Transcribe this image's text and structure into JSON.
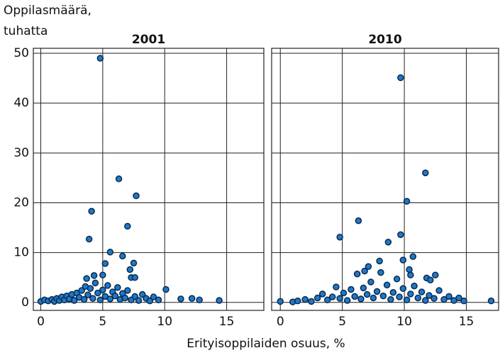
{
  "axis_labels": {
    "y": [
      "Oppilasmäärä,",
      "tuhatta"
    ],
    "x": "Erityisoppilaiden osuus, %"
  },
  "chart_data": [
    {
      "type": "scatter",
      "title": "2001",
      "x": [
        0,
        0.3,
        0.6,
        0.9,
        1.1,
        1.3,
        1.5,
        1.7,
        1.9,
        2.1,
        2.3,
        2.5,
        2.7,
        2.9,
        3.1,
        3.3,
        3.5,
        3.6,
        3.8,
        4.0,
        4.2,
        4.4,
        4.6,
        4.8,
        5.0,
        5.2,
        5.4,
        5.6,
        5.8,
        6.0,
        6.2,
        6.4,
        6.6,
        6.8,
        7.0,
        7.3,
        7.6,
        7.9,
        8.2,
        8.5,
        8.8,
        9.1,
        9.5,
        10.1,
        11.3,
        12.2,
        12.8,
        14.4,
        4.8,
        6.3,
        7.7,
        4.1,
        7.0,
        3.9,
        5.6,
        6.6,
        7.5,
        5.2,
        7.2,
        7.3,
        7.6,
        4.3,
        3.7,
        5.0
      ],
      "values": [
        0.2,
        0.5,
        0.3,
        0.6,
        0.2,
        0.8,
        0.4,
        1.1,
        0.5,
        1.3,
        0.7,
        1.6,
        0.4,
        1.9,
        1.0,
        2.4,
        0.6,
        3.2,
        1.5,
        2.8,
        0.8,
        3.9,
        1.9,
        0.5,
        2.5,
        1.2,
        3.4,
        0.7,
        2.1,
        1.3,
        3.0,
        0.6,
        1.8,
        0.9,
        2.4,
        0.5,
        1.2,
        0.4,
        1.6,
        0.8,
        0.3,
        1.1,
        0.5,
        2.6,
        0.7,
        0.8,
        0.5,
        0.4,
        49,
        24.8,
        21.4,
        18.3,
        15.3,
        12.7,
        10.1,
        9.3,
        7.9,
        7.8,
        6.6,
        5.0,
        5.0,
        5.4,
        4.8,
        5.5
      ],
      "color": "#1f78c8",
      "xlim": [
        -0.6,
        18
      ],
      "ylim": [
        -1.6,
        51
      ],
      "xticks": [
        0,
        5,
        10,
        15
      ],
      "yticks": [
        0,
        10,
        20,
        30,
        40,
        50
      ],
      "show_ytick_labels": true,
      "grid": true
    },
    {
      "type": "scatter",
      "title": "2010",
      "x": [
        0,
        1.0,
        1.4,
        2.0,
        2.5,
        3.0,
        3.4,
        3.8,
        4.2,
        4.5,
        4.8,
        5.1,
        5.4,
        5.7,
        6.0,
        6.2,
        6.5,
        6.7,
        7.0,
        7.3,
        7.5,
        7.8,
        8.1,
        8.3,
        8.6,
        8.9,
        9.1,
        9.4,
        9.6,
        9.9,
        10.2,
        10.5,
        10.8,
        11.1,
        11.4,
        11.7,
        12.0,
        12.4,
        12.8,
        13.2,
        13.6,
        14.0,
        14.4,
        14.8,
        17.0,
        9.7,
        11.7,
        10.2,
        6.3,
        9.7,
        4.8,
        8.7,
        10.7,
        9.9,
        8.0,
        7.1,
        10.4,
        6.8,
        11.8,
        12.5,
        12.1,
        10.5
      ],
      "values": [
        0.2,
        0.1,
        0.3,
        0.6,
        0.2,
        0.9,
        1.7,
        0.5,
        1.1,
        3.1,
        0.8,
        1.9,
        0.4,
        2.6,
        1.2,
        5.7,
        0.7,
        2.9,
        1.6,
        4.1,
        0.9,
        2.2,
        6.0,
        1.3,
        3.5,
        0.6,
        2.0,
        4.7,
        1.1,
        2.8,
        0.5,
        1.7,
        3.3,
        0.9,
        2.1,
        0.4,
        1.4,
        0.8,
        2.4,
        0.6,
        1.2,
        0.4,
        0.9,
        0.3,
        0.3,
        45.1,
        26,
        20.3,
        16.4,
        13.6,
        13.1,
        12.1,
        9.2,
        8.5,
        8.3,
        7.2,
        6.6,
        6.3,
        4.9,
        5.5,
        4.5,
        5.5
      ],
      "color": "#1f78c8",
      "xlim": [
        -0.7,
        17.6
      ],
      "ylim": [
        -1.6,
        51
      ],
      "xticks": [
        0,
        5,
        10,
        15
      ],
      "yticks": [
        0,
        10,
        20,
        30,
        40,
        50
      ],
      "show_ytick_labels": false,
      "grid": true
    }
  ]
}
